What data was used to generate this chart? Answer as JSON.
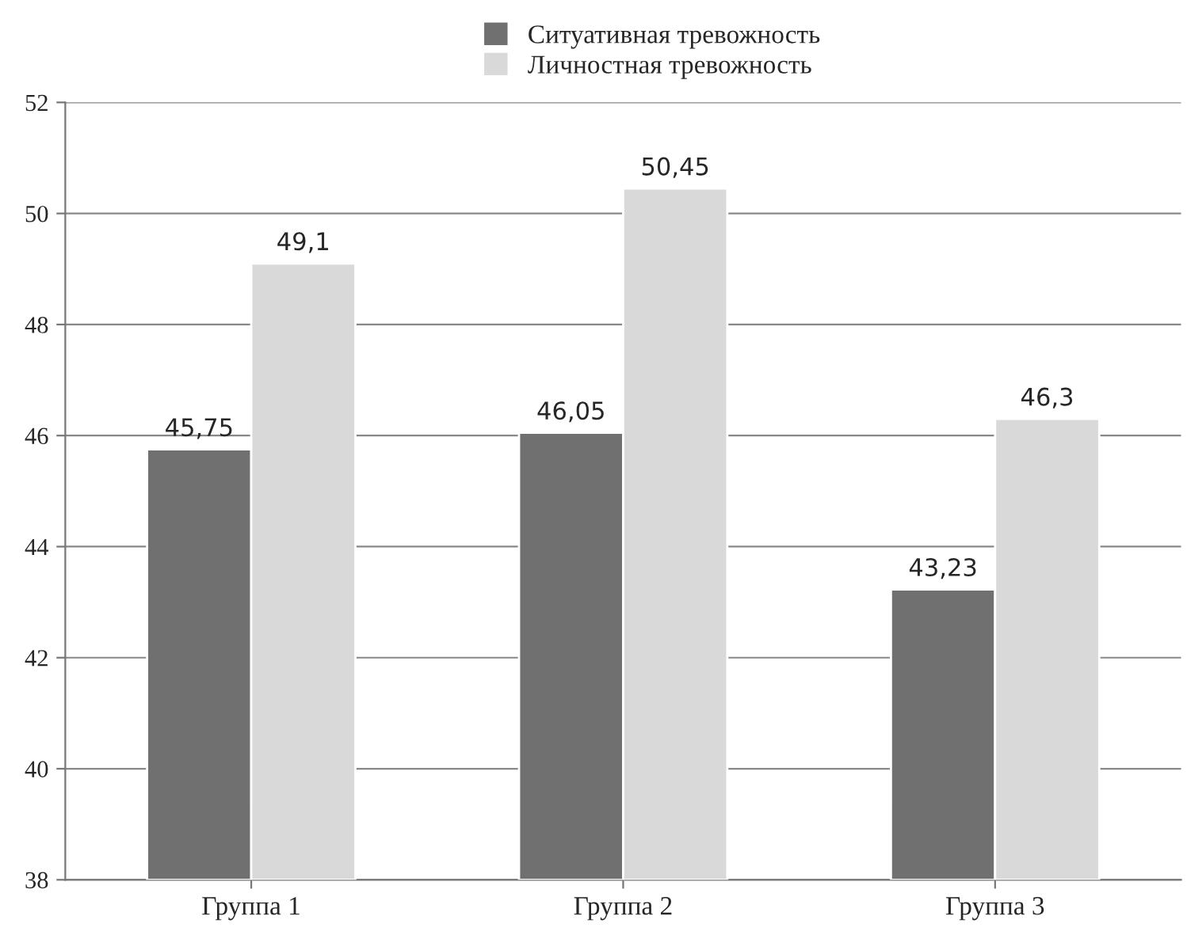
{
  "chart_data": {
    "type": "bar",
    "categories": [
      "Группа 1",
      "Группа 2",
      "Группа 3"
    ],
    "series": [
      {
        "name": "Ситуативная тревожность",
        "color": "#707070",
        "values": [
          45.75,
          46.05,
          43.23
        ],
        "value_labels": [
          "45,75",
          "46,05",
          "43,23"
        ]
      },
      {
        "name": "Личностная тревожность",
        "color": "#d9d9d9",
        "values": [
          49.1,
          50.45,
          46.3
        ],
        "value_labels": [
          "49,1",
          "50,45",
          "46,3"
        ]
      }
    ],
    "ylim": [
      38,
      52
    ],
    "yticks": [
      38,
      40,
      42,
      44,
      46,
      48,
      50,
      52
    ],
    "grid": "y",
    "legend": "top"
  }
}
